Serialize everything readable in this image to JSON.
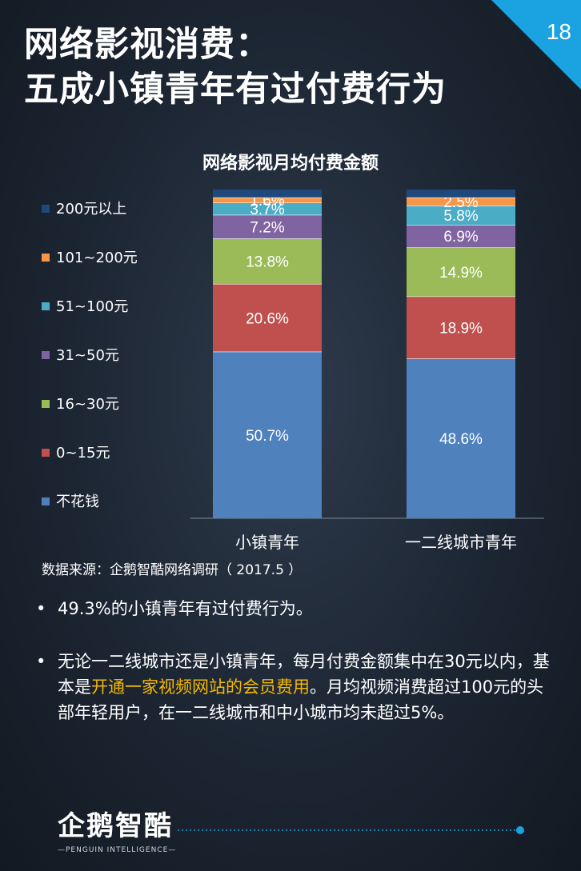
{
  "page": {
    "title_line1": "网络影视消费：",
    "title_line2": "五成小镇青年有过付费行为",
    "page_number": "18",
    "source": "数据来源：企鹅智酷网络调研（  2017.5 ）"
  },
  "chart_data": {
    "type": "bar",
    "stacked": true,
    "percent": true,
    "title": "网络影视月均付费金额",
    "categories": [
      "小镇青年",
      "一二线城市青年"
    ],
    "series": [
      {
        "name": "不花钱",
        "color": "#4f81bd",
        "values": [
          50.7,
          48.6
        ]
      },
      {
        "name": "0~15元",
        "color": "#c0504d",
        "values": [
          20.6,
          18.9
        ]
      },
      {
        "name": "16~30元",
        "color": "#9bbb59",
        "values": [
          13.8,
          14.9
        ]
      },
      {
        "name": "31~50元",
        "color": "#8064a2",
        "values": [
          7.2,
          6.9
        ]
      },
      {
        "name": "51~100元",
        "color": "#4bacc6",
        "values": [
          3.7,
          5.8
        ]
      },
      {
        "name": "101~200元",
        "color": "#f79646",
        "values": [
          1.6,
          2.5
        ]
      },
      {
        "name": "200元以上",
        "color": "#1f497d",
        "values": [
          2.4,
          2.4
        ]
      }
    ],
    "data_labels": [
      {
        "series": "不花钱",
        "labels": [
          "50.7%",
          "48.6%"
        ]
      },
      {
        "series": "0~15元",
        "labels": [
          "20.6%",
          "18.9%"
        ]
      },
      {
        "series": "16~30元",
        "labels": [
          "13.8%",
          "14.9%"
        ]
      },
      {
        "series": "31~50元",
        "labels": [
          "7.2%",
          "6.9%"
        ]
      },
      {
        "series": "51~100元",
        "labels": [
          "3.7%",
          "5.8%"
        ]
      },
      {
        "series": "101~200元",
        "labels": [
          "1.6%",
          "2.5%"
        ]
      }
    ],
    "legend_order": [
      "200元以上",
      "101~200元",
      "51~100元",
      "31~50元",
      "16~30元",
      "0~15元",
      "不花钱"
    ],
    "legend_position": "left",
    "ylim": [
      0,
      100
    ],
    "grid": false
  },
  "bullets": [
    {
      "text": "49.3%的小镇青年有过付费行为。"
    },
    {
      "pre": "无论一二线城市还是小镇青年，每月付费金额集中在30元以内，基本是",
      "highlight": "开通一家视频网站的会员费用",
      "post": "。月均视频消费超过100元的头部年轻用户，在一二线城市和中小城市均未超过5%。"
    }
  ],
  "bullet_marker": "•",
  "logo": {
    "cn": "企鹅智酷",
    "en": "—PENGUIN INTELLIGENCE—"
  },
  "colors": {
    "highlight": "#f5b800",
    "accent": "#1aa3e0",
    "corner": "#1aa3e0"
  }
}
